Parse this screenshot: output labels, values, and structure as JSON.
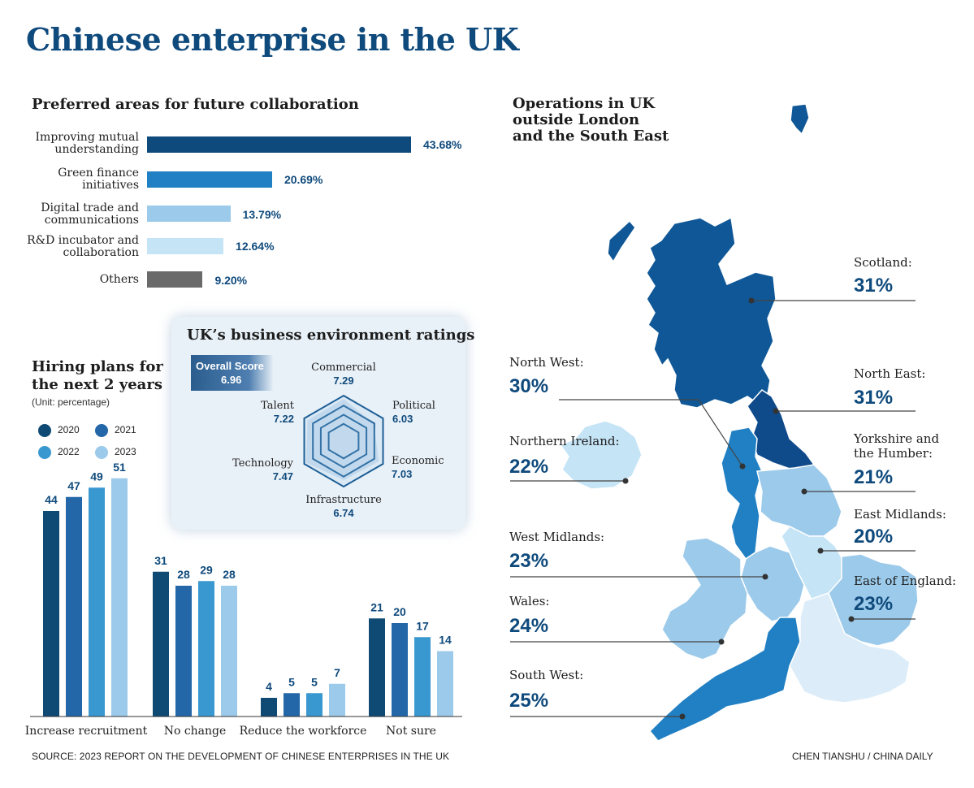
{
  "title": "Chinese enterprise in the UK",
  "preferred": {
    "title": "Preferred areas for future collaboration",
    "items": [
      {
        "label_1": "Improving mutual",
        "label_2": "understanding",
        "value_label": "43.68%",
        "value": 43.68,
        "color": "#0f4a7c"
      },
      {
        "label_1": "Green finance",
        "label_2": "initiatives",
        "value_label": "20.69%",
        "value": 20.69,
        "color": "#2180c3"
      },
      {
        "label_1": "Digital trade and",
        "label_2": "communications",
        "value_label": "13.79%",
        "value": 13.79,
        "color": "#9ccaea"
      },
      {
        "label_1": "R&D incubator and",
        "label_2": "collaboration",
        "value_label": "12.64%",
        "value": 12.64,
        "color": "#c5e4f6"
      },
      {
        "label_1": "Others",
        "label_2": "",
        "value_label": "9.20%",
        "value": 9.2,
        "color": "#6a6a6a"
      }
    ]
  },
  "hiring": {
    "title_1": "Hiring plans for",
    "title_2": "the next 2 years",
    "unit": "(Unit: percentage)",
    "legend": [
      {
        "name": "2020",
        "color": "#0f4a74"
      },
      {
        "name": "2021",
        "color": "#2467a8"
      },
      {
        "name": "2022",
        "color": "#3a98d0"
      },
      {
        "name": "2023",
        "color": "#9ccaea"
      }
    ]
  },
  "radar": {
    "title": "UK’s business environment ratings",
    "overall_label": "Overall Score",
    "overall_value": "6.96",
    "axes": [
      {
        "name": "Commercial",
        "value": "7.29"
      },
      {
        "name": "Political",
        "value": "6.03"
      },
      {
        "name": "Economic",
        "value": "7.03"
      },
      {
        "name": "Infrastructure",
        "value": "6.74"
      },
      {
        "name": "Technology",
        "value": "7.47"
      },
      {
        "name": "Talent",
        "value": "7.22"
      }
    ]
  },
  "map": {
    "title_1": "Operations in UK",
    "title_2": "outside London",
    "title_3": "and the South East",
    "regions": [
      {
        "name": "Scotland:",
        "value": "31%",
        "color": "#0f5796"
      },
      {
        "name": "North West:",
        "value": "30%",
        "color": "#2180c3"
      },
      {
        "name": "North East:",
        "value": "31%",
        "color": "#0f4a8a"
      },
      {
        "name": "Northern Ireland:",
        "value": "22%",
        "color": "#c5e4f6"
      },
      {
        "name_1": "Yorkshire and",
        "name_2": "the Humber:",
        "value": "21%",
        "color": "#9ccaea"
      },
      {
        "name": "East Midlands:",
        "value": "20%",
        "color": "#c5e4f6"
      },
      {
        "name": "West Midlands:",
        "value": "23%",
        "color": "#9ccaea"
      },
      {
        "name": "East of England:",
        "value": "23%",
        "color": "#9ccaea"
      },
      {
        "name": "Wales:",
        "value": "24%",
        "color": "#9ccaea"
      },
      {
        "name": "South West:",
        "value": "25%",
        "color": "#2180c3"
      }
    ],
    "other_color": "#dcedf9"
  },
  "chart_data": [
    {
      "type": "bar",
      "title": "Preferred areas for future collaboration",
      "orientation": "horizontal",
      "categories": [
        "Improving mutual understanding",
        "Green finance initiatives",
        "Digital trade and communications",
        "R&D incubator and collaboration",
        "Others"
      ],
      "values": [
        43.68,
        20.69,
        13.79,
        12.64,
        9.2
      ],
      "unit": "%"
    },
    {
      "type": "bar",
      "title": "Hiring plans for the next 2 years",
      "subtitle": "(Unit: percentage)",
      "categories": [
        "Increase recruitment",
        "No change",
        "Reduce the workforce",
        "Not sure"
      ],
      "series": [
        {
          "name": "2020",
          "values": [
            44,
            31,
            4,
            21
          ]
        },
        {
          "name": "2021",
          "values": [
            47,
            28,
            5,
            20
          ]
        },
        {
          "name": "2022",
          "values": [
            49,
            29,
            5,
            17
          ]
        },
        {
          "name": "2023",
          "values": [
            51,
            28,
            7,
            14
          ]
        }
      ],
      "ylim": [
        0,
        55
      ],
      "legend": "top-left"
    },
    {
      "type": "radar",
      "title": "UK’s business environment ratings",
      "categories": [
        "Commercial",
        "Political",
        "Economic",
        "Infrastructure",
        "Technology",
        "Talent"
      ],
      "values": [
        7.29,
        6.03,
        7.03,
        6.74,
        7.47,
        7.22
      ],
      "overall_score": 6.96
    },
    {
      "type": "map",
      "title": "Operations in UK outside London and the South East",
      "categories": [
        "Scotland",
        "North West",
        "North East",
        "Northern Ireland",
        "Yorkshire and the Humber",
        "East Midlands",
        "West Midlands",
        "East of England",
        "Wales",
        "South West"
      ],
      "values": [
        31,
        30,
        31,
        22,
        21,
        20,
        23,
        23,
        24,
        25
      ],
      "unit": "%"
    }
  ],
  "footer": {
    "source": "SOURCE: 2023 REPORT ON THE DEVELOPMENT OF CHINESE ENTERPRISES IN THE UK",
    "credit": "CHEN TIANSHU / CHINA DAILY"
  }
}
